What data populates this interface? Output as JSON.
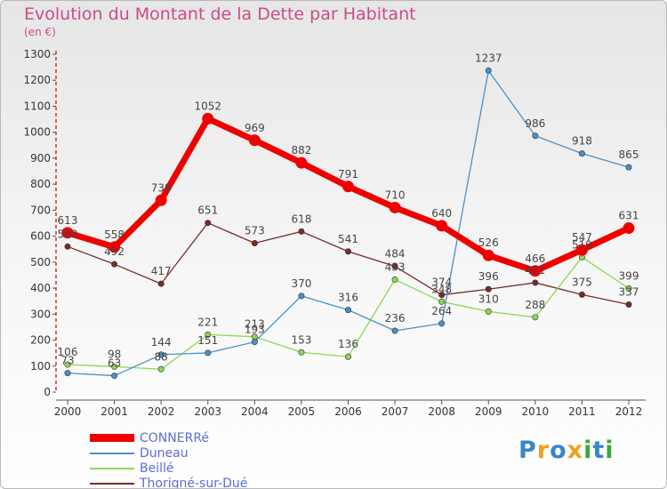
{
  "header": {
    "title": "Evolution du Montant de la Dette par Habitant",
    "unit": "(en €)"
  },
  "brand": {
    "letters": [
      "P",
      "r",
      "o",
      "x",
      "i",
      "t",
      "i"
    ]
  },
  "chart_data": {
    "type": "line",
    "title": "Evolution du Montant de la Dette par Habitant",
    "subtitle": "(en €)",
    "x": [
      "2000",
      "2001",
      "2002",
      "2003",
      "2004",
      "2005",
      "2006",
      "2007",
      "2008",
      "2009",
      "2010",
      "2011",
      "2012"
    ],
    "yticks": [
      0,
      100,
      200,
      300,
      400,
      500,
      600,
      700,
      800,
      900,
      1000,
      1100,
      1200,
      1300
    ],
    "ylim": [
      0,
      1300
    ],
    "grid": false,
    "legend_position": "bottom-left",
    "series": [
      {
        "name": "CONNERRé",
        "color": "#ee0000",
        "values": [
          613,
          558,
          738,
          1052,
          969,
          882,
          791,
          710,
          640,
          526,
          466,
          547,
          631
        ]
      },
      {
        "name": "Duneau",
        "color": "#4a90c8",
        "values": [
          73,
          63,
          144,
          151,
          193,
          370,
          316,
          236,
          264,
          1237,
          986,
          918,
          865
        ]
      },
      {
        "name": "Beillé",
        "color": "#8ed652",
        "values": [
          106,
          98,
          88,
          221,
          213,
          153,
          136,
          433,
          348,
          310,
          288,
          519,
          399
        ]
      },
      {
        "name": "Thorigné-sur-Dué",
        "color": "#7a2a2a",
        "values": [
          560,
          492,
          417,
          651,
          573,
          618,
          541,
          484,
          374,
          396,
          421,
          375,
          337
        ]
      }
    ]
  }
}
